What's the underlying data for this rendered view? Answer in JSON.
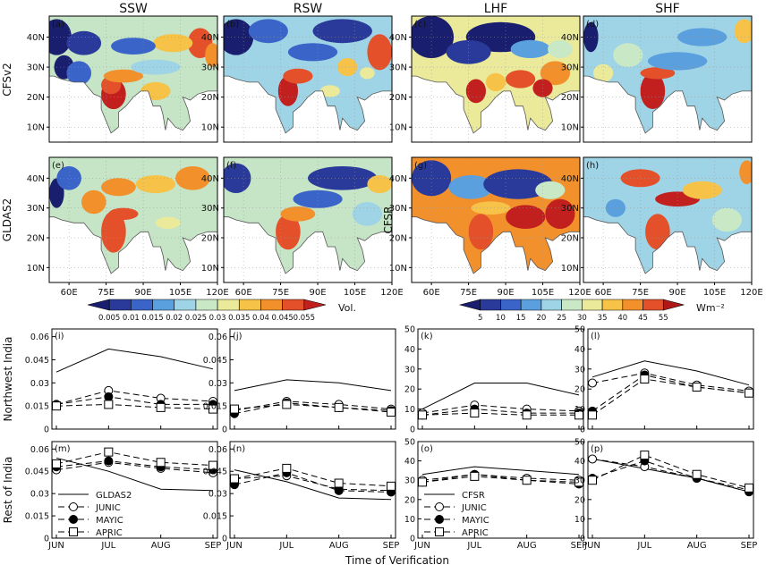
{
  "chart_data": {
    "type": "figure",
    "maps": {
      "columns": [
        "SSW",
        "RSW",
        "LHF",
        "SHF"
      ],
      "panels": [
        {
          "id": "a",
          "label": "(a)",
          "row": 0,
          "col": 0,
          "pattern": "ssw_cfs"
        },
        {
          "id": "b",
          "label": "(b)",
          "row": 0,
          "col": 1,
          "pattern": "rsw_cfs"
        },
        {
          "id": "c",
          "label": "(c)",
          "row": 0,
          "col": 2,
          "pattern": "lhf_cfs"
        },
        {
          "id": "d",
          "label": "(d)",
          "row": 0,
          "col": 3,
          "pattern": "shf_cfs"
        },
        {
          "id": "e",
          "label": "(e)",
          "row": 1,
          "col": 0,
          "pattern": "ssw_gldas"
        },
        {
          "id": "f",
          "label": "(f)",
          "row": 1,
          "col": 1,
          "pattern": "rsw_gldas"
        },
        {
          "id": "g",
          "label": "(g)",
          "row": 1,
          "col": 2,
          "pattern": "lhf_cfsr"
        },
        {
          "id": "h",
          "label": "(h)",
          "row": 1,
          "col": 3,
          "pattern": "shf_cfsr"
        }
      ],
      "row_labels": [
        "CFSv2",
        "GLDAS2"
      ],
      "right_row_label": "CFSR",
      "lat_ticks": [
        "10N",
        "20N",
        "30N",
        "40N"
      ],
      "lat_values": [
        10,
        20,
        30,
        40
      ],
      "lat_range": [
        5,
        47
      ],
      "lon_ticks": [
        "60E",
        "75E",
        "90E",
        "105E",
        "120E"
      ],
      "lon_values": [
        60,
        75,
        90,
        105,
        120
      ],
      "lon_range": [
        52,
        120
      ],
      "colorbar_left": {
        "ticks": [
          "0.005",
          "0.01",
          "0.015",
          "0.02",
          "0.025",
          "0.03",
          "0.035",
          "0.04",
          "0.045",
          "0.055"
        ],
        "unit": "Vol.",
        "colors": [
          "#1a1e6e",
          "#2a3a9a",
          "#3a64c8",
          "#5aa0de",
          "#9ed4e6",
          "#c8e8c6",
          "#eaea9a",
          "#f7c248",
          "#f2912c",
          "#e4502a",
          "#c21f1f"
        ]
      },
      "colorbar_right": {
        "ticks": [
          "5",
          "10",
          "15",
          "20",
          "25",
          "30",
          "35",
          "40",
          "45",
          "55"
        ],
        "unit": "Wm⁻²",
        "colors": [
          "#1a1e6e",
          "#2a3a9a",
          "#3a64c8",
          "#5aa0de",
          "#9ed4e6",
          "#c8e8c6",
          "#eaea9a",
          "#f7c248",
          "#f2912c",
          "#e4502a",
          "#b01818"
        ]
      }
    },
    "lines": {
      "x": [
        "JUN",
        "JUL",
        "AUG",
        "SEP"
      ],
      "xlabel": "Time of Verification",
      "row_labels": [
        "Northwest India",
        "Rest of India"
      ],
      "panels": [
        {
          "id": "i",
          "label": "(i)",
          "row": 0,
          "col": 0,
          "ylim": [
            0,
            0.065
          ],
          "yticks": [
            0,
            0.015,
            0.03,
            0.045,
            0.06
          ],
          "ytick_labels": [
            "0",
            "0.015",
            "0.03",
            "0.045",
            "0.06"
          ],
          "series": [
            {
              "name": "GLDAS2",
              "values": [
                0.037,
                0.052,
                0.047,
                0.039
              ]
            },
            {
              "name": "JUNIC",
              "values": [
                0.016,
                0.025,
                0.02,
                0.018
              ]
            },
            {
              "name": "MAYIC",
              "values": [
                0.016,
                0.021,
                0.016,
                0.016
              ]
            },
            {
              "name": "APRIC",
              "values": [
                0.015,
                0.016,
                0.014,
                0.013
              ]
            }
          ]
        },
        {
          "id": "j",
          "label": "(j)",
          "row": 0,
          "col": 1,
          "ylim": [
            0,
            0.065
          ],
          "yticks": [
            0,
            0.015,
            0.03,
            0.045,
            0.06
          ],
          "ytick_labels": [
            "0",
            "0.015",
            "0.03",
            "0.045",
            "0.06"
          ],
          "series": [
            {
              "name": "GLDAS",
              "values": [
                0.025,
                0.032,
                0.03,
                0.025
              ]
            },
            {
              "name": "JUNIC",
              "values": [
                0.012,
                0.018,
                0.016,
                0.013
              ]
            },
            {
              "name": "MAYIC",
              "values": [
                0.01,
                0.017,
                0.014,
                0.012
              ]
            },
            {
              "name": "APRIC",
              "values": [
                0.013,
                0.016,
                0.014,
                0.011
              ]
            }
          ]
        },
        {
          "id": "k",
          "label": "(k)",
          "row": 0,
          "col": 2,
          "ylim": [
            0,
            50
          ],
          "yticks": [
            0,
            10,
            20,
            30,
            40,
            50
          ],
          "ytick_labels": [
            "0",
            "10",
            "20",
            "30",
            "40",
            "50"
          ],
          "series": [
            {
              "name": "CFSR",
              "values": [
                10,
                23,
                23,
                17
              ]
            },
            {
              "name": "JUNIC",
              "values": [
                8,
                12,
                10,
                9
              ]
            },
            {
              "name": "MAYIC",
              "values": [
                7,
                10,
                8,
                8
              ]
            },
            {
              "name": "APRIC",
              "values": [
                7,
                8,
                7,
                7
              ]
            }
          ]
        },
        {
          "id": "l",
          "label": "(l)",
          "row": 0,
          "col": 3,
          "ylim": [
            0,
            50
          ],
          "yticks": [
            0,
            10,
            20,
            30,
            40,
            50
          ],
          "ytick_labels": [
            "0",
            "10",
            "20",
            "30",
            "40",
            "50"
          ],
          "series": [
            {
              "name": "CFSR",
              "values": [
                26,
                34,
                29,
                22
              ]
            },
            {
              "name": "JUNIC",
              "values": [
                23,
                28,
                22,
                19
              ]
            },
            {
              "name": "MAYIC",
              "values": [
                9,
                27,
                21,
                18
              ]
            },
            {
              "name": "APRIC",
              "values": [
                7,
                25,
                21,
                18
              ]
            }
          ]
        },
        {
          "id": "m",
          "label": "(m)",
          "row": 1,
          "col": 0,
          "ylim": [
            0,
            0.065
          ],
          "yticks": [
            0,
            0.015,
            0.03,
            0.045,
            0.06
          ],
          "ytick_labels": [
            "0",
            "0.015",
            "0.03",
            "0.045",
            "0.06"
          ],
          "series": [
            {
              "name": "GLDAS2",
              "values": [
                0.054,
                0.045,
                0.033,
                0.032
              ]
            },
            {
              "name": "JUNIC",
              "values": [
                0.046,
                0.051,
                0.047,
                0.044
              ]
            },
            {
              "name": "MAYIC",
              "values": [
                0.048,
                0.052,
                0.048,
                0.046
              ]
            },
            {
              "name": "APRIC",
              "values": [
                0.05,
                0.058,
                0.051,
                0.049
              ]
            }
          ]
        },
        {
          "id": "n",
          "label": "(n)",
          "row": 1,
          "col": 1,
          "ylim": [
            0,
            0.065
          ],
          "yticks": [
            0,
            0.015,
            0.03,
            0.045,
            0.06
          ],
          "ytick_labels": [
            "0",
            "0.015",
            "0.03",
            "0.045",
            "0.06"
          ],
          "series": [
            {
              "name": "GLDAS",
              "values": [
                0.046,
                0.038,
                0.027,
                0.026
              ]
            },
            {
              "name": "JUNIC",
              "values": [
                0.04,
                0.042,
                0.033,
                0.032
              ]
            },
            {
              "name": "MAYIC",
              "values": [
                0.036,
                0.044,
                0.032,
                0.031
              ]
            },
            {
              "name": "APRIC",
              "values": [
                0.04,
                0.047,
                0.037,
                0.035
              ]
            }
          ]
        },
        {
          "id": "o",
          "label": "(o)",
          "row": 1,
          "col": 2,
          "ylim": [
            0,
            50
          ],
          "yticks": [
            0,
            10,
            20,
            30,
            40,
            50
          ],
          "ytick_labels": [
            "0",
            "10",
            "20",
            "30",
            "40",
            "50"
          ],
          "series": [
            {
              "name": "CFSR",
              "values": [
                33,
                37,
                35,
                33
              ]
            },
            {
              "name": "JUNIC",
              "values": [
                30,
                33,
                31,
                30
              ]
            },
            {
              "name": "MAYIC",
              "values": [
                29,
                33,
                30,
                28
              ]
            },
            {
              "name": "APRIC",
              "values": [
                29,
                32,
                30,
                29
              ]
            }
          ]
        },
        {
          "id": "p",
          "label": "(p)",
          "row": 1,
          "col": 3,
          "ylim": [
            0,
            50
          ],
          "yticks": [
            0,
            10,
            20,
            30,
            40,
            50
          ],
          "ytick_labels": [
            "0",
            "10",
            "20",
            "30",
            "40",
            "50"
          ],
          "series": [
            {
              "name": "CFSR",
              "values": [
                41,
                36,
                31,
                24
              ]
            },
            {
              "name": "JUNIC",
              "values": [
                41,
                37,
                31,
                25
              ]
            },
            {
              "name": "MAYIC",
              "values": [
                31,
                40,
                31,
                24
              ]
            },
            {
              "name": "APRIC",
              "values": [
                30,
                43,
                33,
                26
              ]
            }
          ]
        }
      ],
      "legends": {
        "left": [
          "GLDAS2",
          "JUNIC",
          "MAYIC",
          "APRIC"
        ],
        "right": [
          "CFSR",
          "JUNIC",
          "MAYIC",
          "APRIC"
        ]
      }
    }
  }
}
